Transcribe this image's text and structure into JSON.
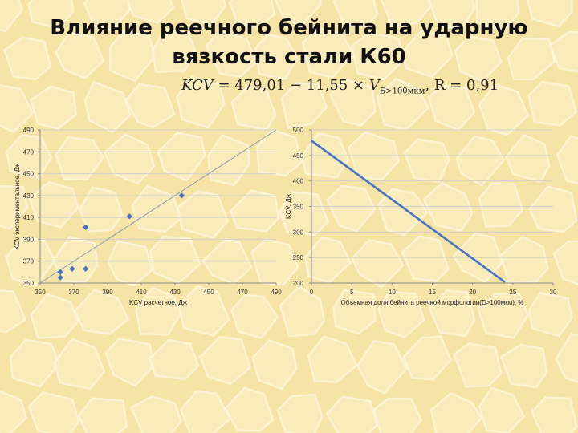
{
  "slide": {
    "title_line1": "Влияние реечного бейнита на ударную",
    "title_line2": "вязкость стали К60",
    "formula": {
      "lhs": "KCV",
      "eq": " = 479,01 − 11,55 × ",
      "var": "V",
      "sub": "Б>100мкм",
      "tail": ", R = 0,91"
    }
  },
  "colors": {
    "bg_base": "#f6e3a6",
    "bg_cell": "#fbedbf",
    "bg_line": "#fff7dc",
    "marker": "#4472c4",
    "line": "#4472c4",
    "diag": "#8e9aa6",
    "grid": "#cfcfcf"
  },
  "chart_data": [
    {
      "type": "scatter",
      "title": "",
      "xlabel": "KCV расчетное, Дж",
      "ylabel": "KCV экспериментальное, Дж",
      "xlim": [
        350,
        490
      ],
      "ylim": [
        350,
        490
      ],
      "xticks": [
        350,
        370,
        390,
        410,
        430,
        450,
        470,
        490
      ],
      "yticks": [
        350,
        370,
        390,
        410,
        430,
        450,
        470,
        490
      ],
      "grid": true,
      "reference_line": "y = x",
      "series": [
        {
          "points": [
            [
              362,
              355
            ],
            [
              362,
              360
            ],
            [
              369,
              363
            ],
            [
              377,
              363
            ],
            [
              377,
              401
            ],
            [
              403,
              411
            ],
            [
              434,
              430
            ]
          ]
        }
      ]
    },
    {
      "type": "line",
      "title": "",
      "xlabel": "Объемная доля бейнита реечной морфологии(D>100мкм), %",
      "ylabel": "KCV, Дж",
      "xlim": [
        0,
        30
      ],
      "ylim": [
        200,
        500
      ],
      "xticks": [
        0,
        5,
        10,
        15,
        20,
        25,
        30
      ],
      "yticks": [
        200,
        250,
        300,
        350,
        400,
        450,
        500
      ],
      "grid": true,
      "series": [
        {
          "x": [
            0,
            24
          ],
          "y": [
            479.01,
            201.81
          ]
        }
      ]
    }
  ]
}
